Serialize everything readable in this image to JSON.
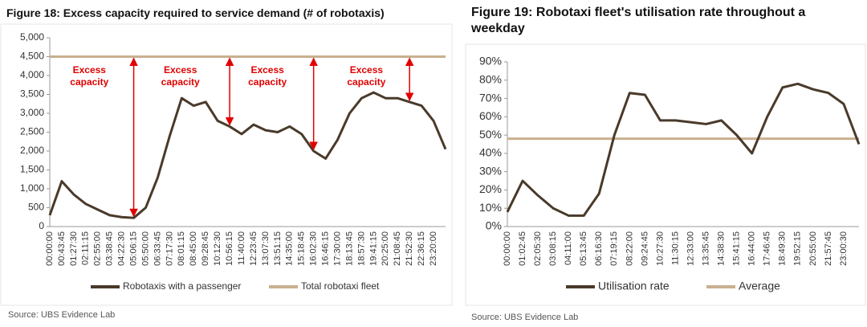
{
  "chart_data": [
    {
      "type": "line",
      "title": "Figure 18: Excess capacity required to service demand (# of robotaxis)",
      "categories": [
        "00:00:00",
        "00:43:45",
        "01:27:30",
        "02:11:15",
        "02:55:00",
        "03:38:45",
        "04:22:30",
        "05:06:15",
        "05:50:00",
        "06:33:45",
        "07:17:30",
        "08:01:15",
        "08:45:00",
        "09:28:45",
        "10:12:30",
        "10:56:15",
        "11:40:00",
        "12:23:45",
        "13:07:30",
        "13:51:15",
        "14:35:00",
        "15:18:45",
        "16:02:30",
        "16:46:15",
        "17:30:00",
        "18:13:45",
        "18:57:30",
        "19:41:15",
        "20:25:00",
        "21:08:45",
        "21:52:30",
        "22:36:15",
        "23:20:00",
        null
      ],
      "series": [
        {
          "name": "Robotaxis with a passenger",
          "color": "#4a3a2a",
          "values": [
            300,
            1200,
            850,
            600,
            450,
            300,
            250,
            230,
            500,
            1300,
            2400,
            3400,
            3200,
            3300,
            2800,
            2650,
            2450,
            2700,
            2550,
            2500,
            2650,
            2450,
            2000,
            1800,
            2300,
            3000,
            3400,
            3550,
            3400,
            3400,
            3300,
            3200,
            2800,
            2050
          ]
        },
        {
          "name": "Total robotaxi fleet",
          "color": "#c9b08f",
          "values": [
            4500,
            4500,
            4500,
            4500,
            4500,
            4500,
            4500,
            4500,
            4500,
            4500,
            4500,
            4500,
            4500,
            4500,
            4500,
            4500,
            4500,
            4500,
            4500,
            4500,
            4500,
            4500,
            4500,
            4500,
            4500,
            4500,
            4500,
            4500,
            4500,
            4500,
            4500,
            4500,
            4500,
            4500
          ]
        }
      ],
      "ylim": [
        0,
        5000
      ],
      "yticks": [
        0,
        500,
        {
          "value": 1000,
          "label": "1,000"
        },
        {
          "value": 1500,
          "label": "1,500"
        },
        {
          "value": 2000,
          "label": "2,000"
        },
        {
          "value": 2500,
          "label": "2,500"
        },
        {
          "value": 3000,
          "label": "3,000"
        },
        {
          "value": 3500,
          "label": "3,500"
        },
        {
          "value": 4000,
          "label": "4,000"
        },
        {
          "value": 4500,
          "label": "4,500"
        },
        {
          "value": 5000,
          "label": "5,000"
        }
      ],
      "annotations": [
        "Excess capacity",
        "Excess capacity",
        "Excess capacity",
        "Excess capacity"
      ],
      "legend": "bottom",
      "source": "Source:  UBS Evidence Lab"
    },
    {
      "type": "line",
      "title": "Figure 19: Robotaxi fleet's utilisation rate throughout a weekday",
      "categories": [
        "00:00:00",
        "01:02:45",
        "02:05:30",
        "03:08:15",
        "04:11:00",
        "05:13:45",
        "06:16:30",
        "07:19:15",
        "08:22:00",
        "09:24:45",
        "10:27:30",
        "11:30:15",
        "12:33:00",
        "13:35:45",
        "14:38:30",
        "15:41:15",
        "16:44:00",
        "17:46:45",
        "18:49:30",
        "19:52:15",
        "20:55:00",
        "21:57:45",
        "23:00:30",
        null
      ],
      "series": [
        {
          "name": "Utilisation rate",
          "color": "#4a3a2a",
          "values": [
            8,
            25,
            17,
            10,
            6,
            6,
            18,
            50,
            73,
            72,
            58,
            58,
            57,
            56,
            58,
            50,
            40,
            60,
            76,
            78,
            75,
            73,
            67,
            45
          ]
        },
        {
          "name": "Average",
          "color": "#c9b08f",
          "values": [
            48,
            48,
            48,
            48,
            48,
            48,
            48,
            48,
            48,
            48,
            48,
            48,
            48,
            48,
            48,
            48,
            48,
            48,
            48,
            48,
            48,
            48,
            48,
            48
          ]
        }
      ],
      "ylim": [
        0,
        90
      ],
      "yticks": [
        {
          "value": 0,
          "label": "0%"
        },
        {
          "value": 10,
          "label": "10%"
        },
        {
          "value": 20,
          "label": "20%"
        },
        {
          "value": 30,
          "label": "30%"
        },
        {
          "value": 40,
          "label": "40%"
        },
        {
          "value": 50,
          "label": "50%"
        },
        {
          "value": 60,
          "label": "60%"
        },
        {
          "value": 70,
          "label": "70%"
        },
        {
          "value": 80,
          "label": "80%"
        },
        {
          "value": 90,
          "label": "90%"
        }
      ],
      "legend": "bottom",
      "source": "Source:  UBS Evidence Lab"
    }
  ]
}
